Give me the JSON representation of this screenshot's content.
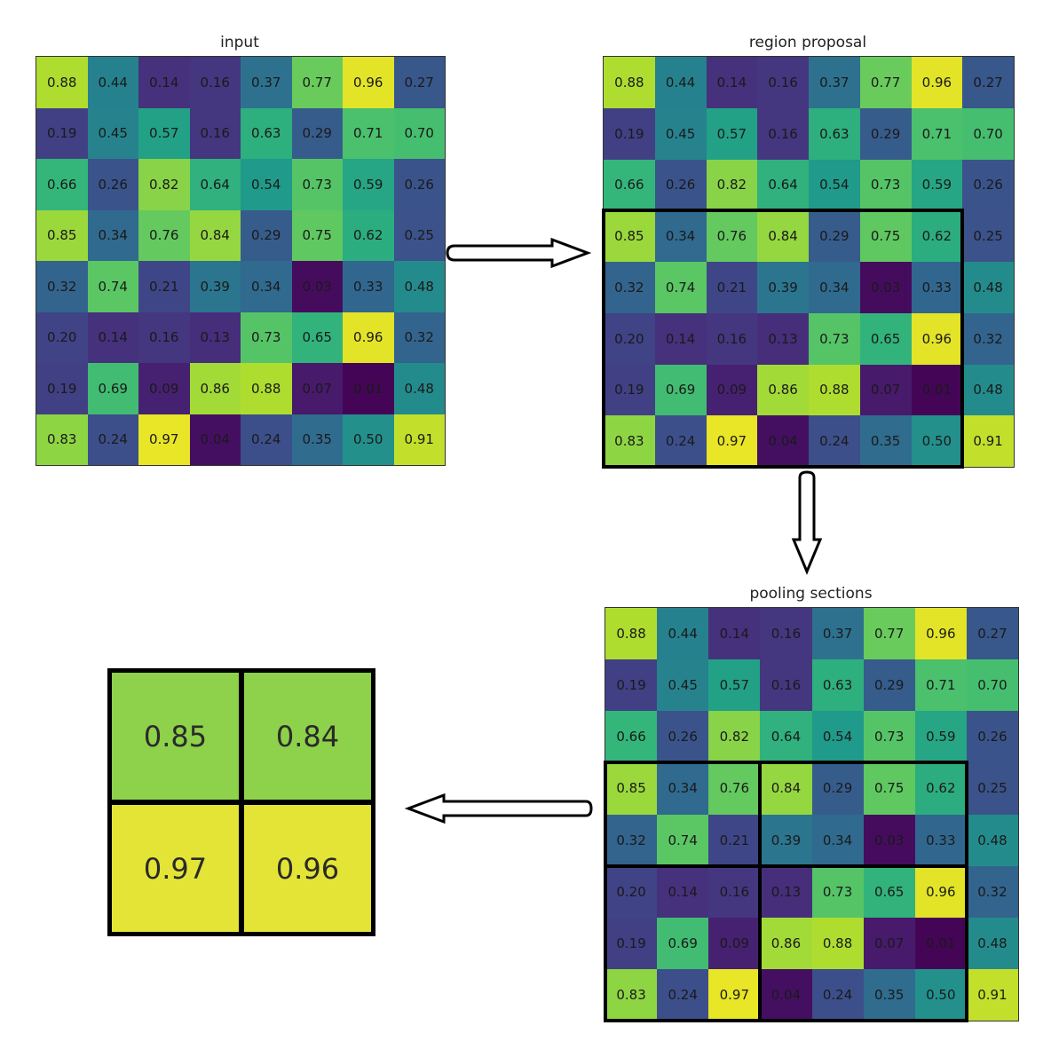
{
  "panels": {
    "input": {
      "title": "input"
    },
    "region": {
      "title": "region proposal"
    },
    "sections": {
      "title": "pooling sections"
    }
  },
  "matrix": [
    [
      "0.88",
      "0.44",
      "0.14",
      "0.16",
      "0.37",
      "0.77",
      "0.96",
      "0.27"
    ],
    [
      "0.19",
      "0.45",
      "0.57",
      "0.16",
      "0.63",
      "0.29",
      "0.71",
      "0.70"
    ],
    [
      "0.66",
      "0.26",
      "0.82",
      "0.64",
      "0.54",
      "0.73",
      "0.59",
      "0.26"
    ],
    [
      "0.85",
      "0.34",
      "0.76",
      "0.84",
      "0.29",
      "0.75",
      "0.62",
      "0.25"
    ],
    [
      "0.32",
      "0.74",
      "0.21",
      "0.39",
      "0.34",
      "0.03",
      "0.33",
      "0.48"
    ],
    [
      "0.20",
      "0.14",
      "0.16",
      "0.13",
      "0.73",
      "0.65",
      "0.96",
      "0.32"
    ],
    [
      "0.19",
      "0.69",
      "0.09",
      "0.86",
      "0.88",
      "0.07",
      "0.01",
      "0.48"
    ],
    [
      "0.83",
      "0.24",
      "0.97",
      "0.04",
      "0.24",
      "0.35",
      "0.50",
      "0.91"
    ]
  ],
  "pooled_output": [
    [
      "0.85",
      "0.84"
    ],
    [
      "0.97",
      "0.96"
    ]
  ],
  "region_box": {
    "rows": [
      3,
      7
    ],
    "cols": [
      0,
      6
    ]
  },
  "sections": [
    {
      "rows": [
        3,
        4
      ],
      "cols": [
        0,
        2
      ]
    },
    {
      "rows": [
        3,
        4
      ],
      "cols": [
        3,
        6
      ]
    },
    {
      "rows": [
        5,
        7
      ],
      "cols": [
        0,
        2
      ]
    },
    {
      "rows": [
        5,
        7
      ],
      "cols": [
        3,
        6
      ]
    }
  ],
  "colormap": "viridis",
  "colors": {
    "pooled_green": "#8ed14a",
    "pooled_yellow": "#e4e437"
  }
}
